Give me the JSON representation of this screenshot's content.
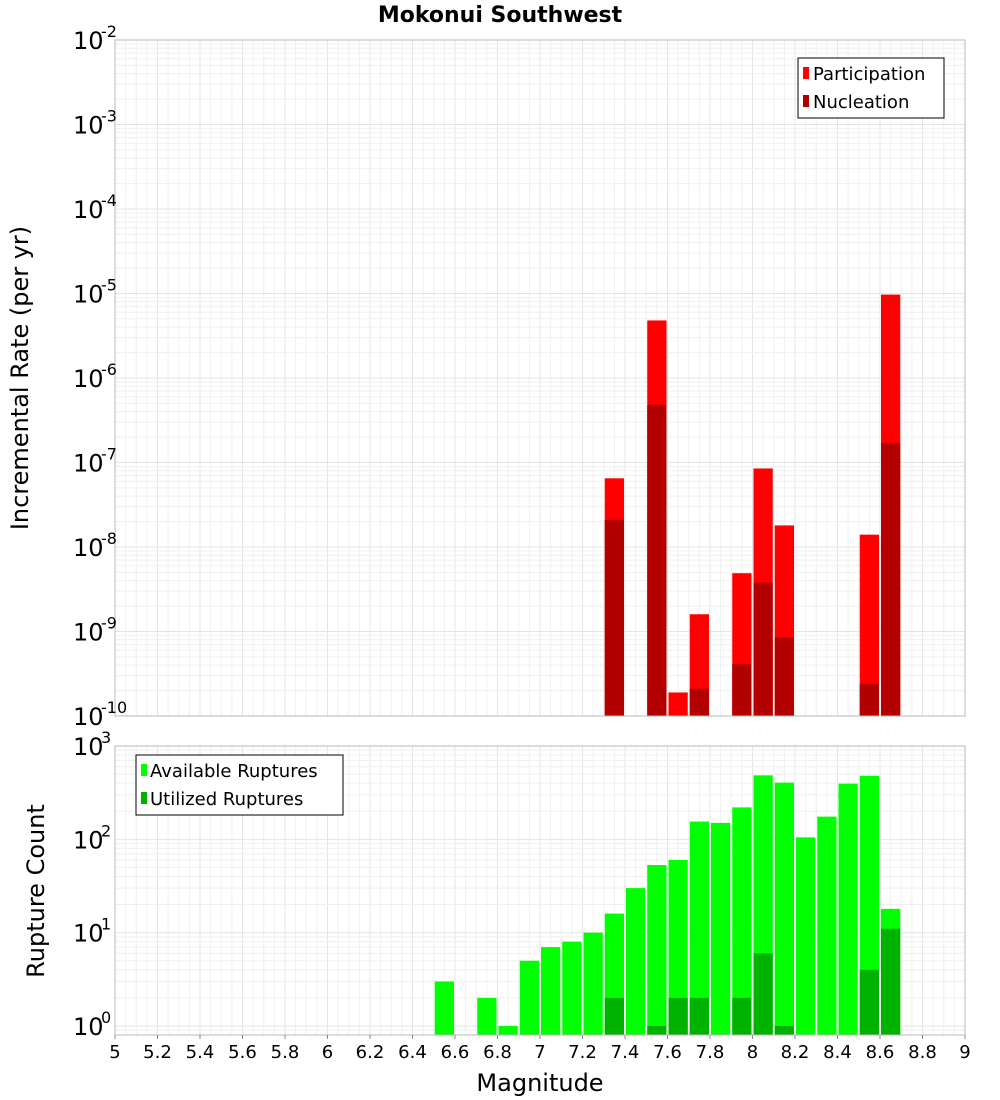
{
  "title": "Mokonui Southwest",
  "colors": {
    "participation": "#ff0000",
    "nucleation": "#b20000",
    "available": "#00ff00",
    "utilized": "#00b200"
  },
  "chart_data": [
    {
      "type": "bar",
      "panel": "top",
      "title": "Mokonui Southwest",
      "xlabel": "",
      "ylabel": "Incremental Rate (per yr)",
      "yscale": "log",
      "ylim": [
        1e-10,
        0.01
      ],
      "xlim": [
        5,
        9
      ],
      "bar_width": 0.1,
      "grid": true,
      "legend_position": "top-right",
      "ytick_labels": [
        {
          "base": "10",
          "exp": "-2"
        },
        {
          "base": "10",
          "exp": "-3"
        },
        {
          "base": "10",
          "exp": "-4"
        },
        {
          "base": "10",
          "exp": "-5"
        },
        {
          "base": "10",
          "exp": "-6"
        },
        {
          "base": "10",
          "exp": "-7"
        },
        {
          "base": "10",
          "exp": "-8"
        },
        {
          "base": "10",
          "exp": "-9"
        },
        {
          "base": "10",
          "exp": "-10"
        }
      ],
      "series": [
        {
          "name": "Participation",
          "color": "#ff0000",
          "x": [
            7.35,
            7.55,
            7.65,
            7.75,
            7.95,
            8.05,
            8.15,
            8.55,
            8.65
          ],
          "values": [
            6.5e-08,
            4.8e-06,
            1.9e-10,
            1.6e-09,
            4.9e-09,
            8.5e-08,
            1.8e-08,
            1.4e-08,
            9.7e-06
          ]
        },
        {
          "name": "Nucleation",
          "color": "#b20000",
          "x": [
            7.35,
            7.55,
            7.75,
            7.95,
            8.05,
            8.15,
            8.55,
            8.65
          ],
          "values": [
            2.1e-08,
            4.8e-07,
            2.1e-10,
            4.1e-10,
            3.8e-09,
            8.5e-10,
            2.4e-10,
            1.7e-07
          ]
        }
      ]
    },
    {
      "type": "bar",
      "panel": "bottom",
      "xlabel": "Magnitude",
      "ylabel": "Rupture Count",
      "yscale": "log",
      "ylim": [
        0.8,
        1000
      ],
      "xlim": [
        5,
        9
      ],
      "bar_width": 0.1,
      "grid": true,
      "legend_position": "top-left",
      "ytick_labels": [
        {
          "base": "10",
          "exp": "3"
        },
        {
          "base": "10",
          "exp": "2"
        },
        {
          "base": "10",
          "exp": "1"
        },
        {
          "base": "10",
          "exp": "0"
        }
      ],
      "xticks": [
        "5",
        "5.2",
        "5.4",
        "5.6",
        "5.8",
        "6",
        "6.2",
        "6.4",
        "6.6",
        "6.8",
        "7",
        "7.2",
        "7.4",
        "7.6",
        "7.8",
        "8",
        "8.2",
        "8.4",
        "8.6",
        "8.8",
        "9"
      ],
      "series": [
        {
          "name": "Available Ruptures",
          "color": "#00ff00",
          "x": [
            6.55,
            6.75,
            6.85,
            6.95,
            7.05,
            7.15,
            7.25,
            7.35,
            7.45,
            7.55,
            7.65,
            7.75,
            7.85,
            7.95,
            8.05,
            8.15,
            8.25,
            8.35,
            8.45,
            8.55,
            8.65
          ],
          "values": [
            3,
            2,
            1,
            5,
            7,
            8,
            10,
            16,
            30,
            53,
            60,
            155,
            150,
            220,
            485,
            405,
            105,
            175,
            395,
            480,
            18
          ]
        },
        {
          "name": "Utilized Ruptures",
          "color": "#00b200",
          "x": [
            7.35,
            7.55,
            7.65,
            7.75,
            7.95,
            8.05,
            8.15,
            8.55,
            8.65
          ],
          "values": [
            2,
            1,
            2,
            2,
            2,
            6,
            1,
            4,
            11
          ]
        }
      ]
    }
  ]
}
